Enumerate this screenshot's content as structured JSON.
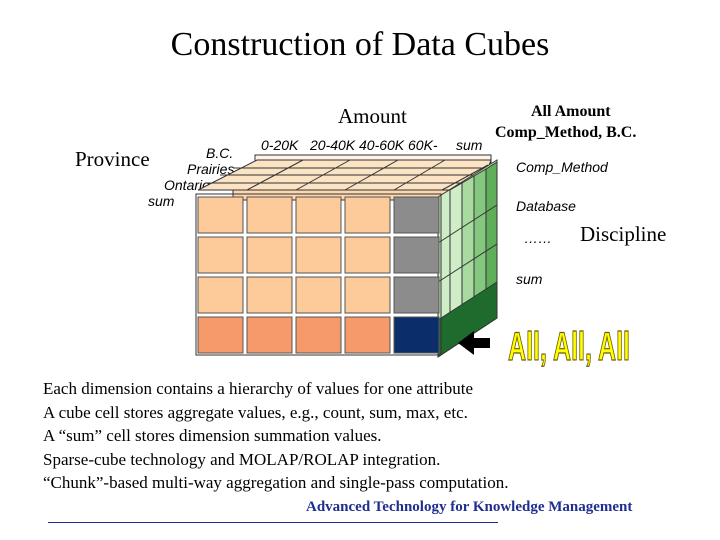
{
  "title": "Construction of Data Cubes",
  "labels": {
    "amount": "Amount",
    "province": "Province",
    "discipline": "Discipline",
    "all_amount": "All Amount",
    "comp_method_bc": "Comp_Method, B.C."
  },
  "province_values": [
    "B.C.",
    "Prairies",
    "Ontario",
    "sum"
  ],
  "amount_values": [
    "0-20K",
    "20-40K",
    "40-60K",
    "60K-",
    "sum"
  ],
  "discipline_values": [
    "Comp_Method",
    "Database",
    "……",
    "sum"
  ],
  "all_all_all": "All, All, All",
  "arrow_icon": "left-arrow-icon",
  "colors": {
    "front_peach": "#fccb99",
    "front_orange": "#f79a6b",
    "gray_face": "#8c8c8c",
    "navy_face": "#0b2e6a",
    "green_light": "#cfeec7",
    "green_mid": "#86c77f",
    "green_dark": "#1f6b2d",
    "yellow_all": "#ffff00",
    "footer_blue": "#1f2e8f"
  },
  "bullets": [
    "Each dimension contains a hierarchy of  values for one attribute",
    "A cube cell stores aggregate values, e.g., count,  sum, max, etc.",
    "A “sum” cell stores dimension summation values.",
    "Sparse-cube technology and MOLAP/ROLAP integration.",
    "“Chunk”-based multi-way aggregation and single-pass computation."
  ],
  "footer": "Advanced Technology for Knowledge Management"
}
